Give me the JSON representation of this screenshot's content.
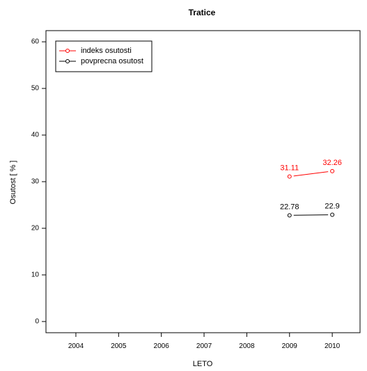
{
  "chart_data": {
    "type": "line",
    "title": "Tratice",
    "xlabel": "LETO",
    "ylabel": "Osutost [ % ]",
    "x_ticks": [
      2004,
      2005,
      2006,
      2007,
      2008,
      2009,
      2010
    ],
    "y_ticks": [
      0,
      10,
      20,
      30,
      40,
      50,
      60
    ],
    "xlim": [
      2003.3,
      2010.65
    ],
    "ylim": [
      -2.4,
      62.4
    ],
    "legend_position": "top-left",
    "grid": false,
    "series": [
      {
        "name": "indeks osutosti",
        "color": "#ff0000",
        "x": [
          2009,
          2010
        ],
        "y": [
          31.11,
          32.26
        ],
        "labels": [
          "31.11",
          "32.26"
        ]
      },
      {
        "name": "povprecna osutost",
        "color": "#000000",
        "x": [
          2009,
          2010
        ],
        "y": [
          22.78,
          22.9
        ],
        "labels": [
          "22.78",
          "22.9"
        ]
      }
    ]
  }
}
